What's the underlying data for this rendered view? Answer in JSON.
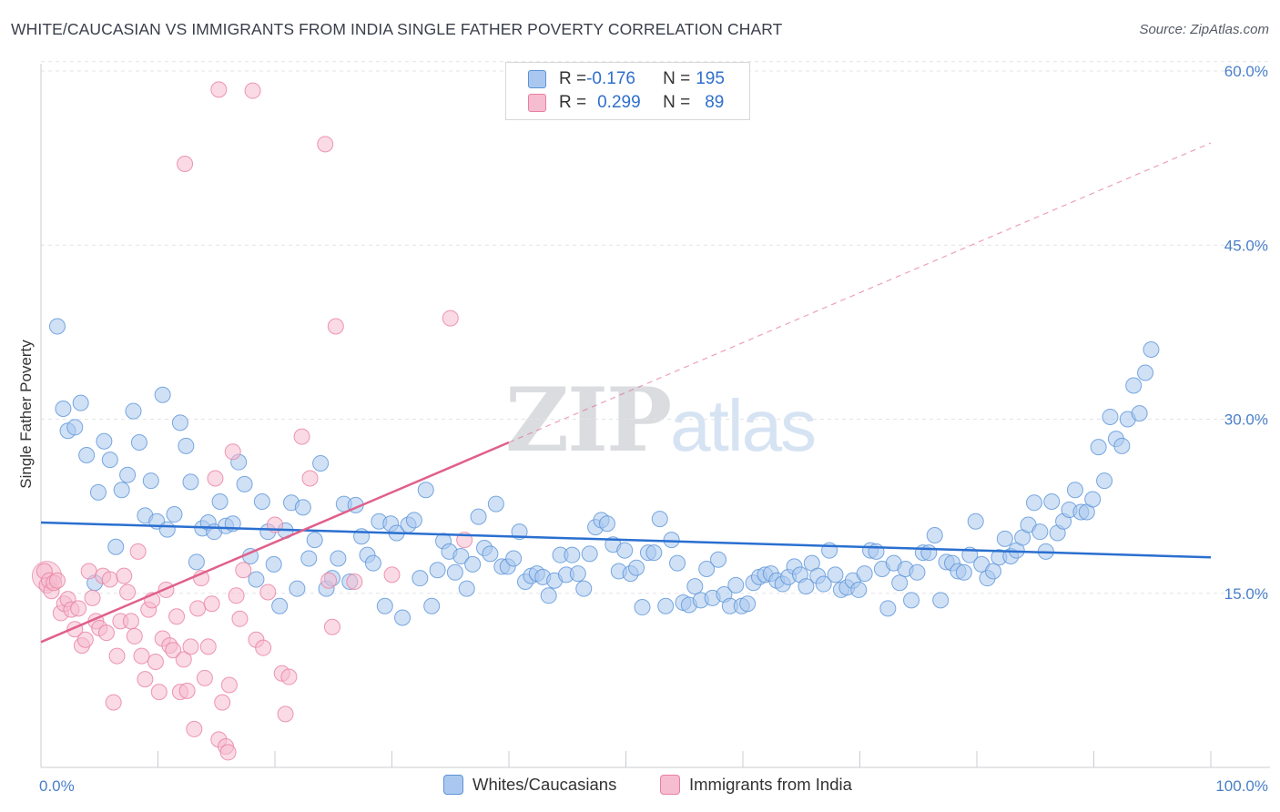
{
  "title": "WHITE/CAUCASIAN VS IMMIGRANTS FROM INDIA SINGLE FATHER POVERTY CORRELATION CHART",
  "source": "Source: ZipAtlas.com",
  "watermark": {
    "zip": "ZIP",
    "atlas": "atlas"
  },
  "legend": {
    "rows": [
      {
        "r_label": "R = ",
        "r_value": "-0.176",
        "n_label": "N = ",
        "n_value": "195",
        "color": "#aac8ef"
      },
      {
        "r_label": "R = ",
        "r_value": "0.299",
        "n_label": "N = ",
        "n_value": "89",
        "color": "#f6bcd0"
      }
    ]
  },
  "bottom_legend": [
    {
      "label": "Whites/Caucasians",
      "color": "#aac8ef"
    },
    {
      "label": "Immigrants from India",
      "color": "#f6bcd0"
    }
  ],
  "chart_data": {
    "type": "scatter",
    "title": "WHITE/CAUCASIAN VS IMMIGRANTS FROM INDIA SINGLE FATHER POVERTY CORRELATION CHART",
    "xlabel": "",
    "ylabel": "Single Father Poverty",
    "xlim": [
      0,
      100
    ],
    "ylim": [
      0,
      60
    ],
    "x_tick_labels": [
      "0.0%",
      "100.0%"
    ],
    "y_ticks": [
      15,
      30,
      45,
      60
    ],
    "y_tick_labels": [
      "15.0%",
      "30.0%",
      "45.0%",
      "60.0%"
    ],
    "grid": true,
    "colors": {
      "blue_fill": "#aac8ef",
      "blue_stroke": "#5b93d8",
      "blue_line": "#2a6fd0",
      "pink_fill": "#f6bcd0",
      "pink_stroke": "#e8809f",
      "pink_line": "#e0608a"
    },
    "series": [
      {
        "name": "Whites/Caucasians",
        "R": -0.176,
        "N": 195,
        "trend": {
          "x": [
            0,
            100
          ],
          "y": [
            21.1,
            18.1
          ]
        },
        "points": [
          [
            1.4,
            38.0
          ],
          [
            1.9,
            30.9
          ],
          [
            2.3,
            29.0
          ],
          [
            2.9,
            29.3
          ],
          [
            3.4,
            31.4
          ],
          [
            3.9,
            26.9
          ],
          [
            4.6,
            15.9
          ],
          [
            4.9,
            23.7
          ],
          [
            5.4,
            28.1
          ],
          [
            5.9,
            26.5
          ],
          [
            6.4,
            19.0
          ],
          [
            6.9,
            23.9
          ],
          [
            7.4,
            25.2
          ],
          [
            7.9,
            30.7
          ],
          [
            8.4,
            28.0
          ],
          [
            8.9,
            21.7
          ],
          [
            9.4,
            24.7
          ],
          [
            9.9,
            21.2
          ],
          [
            10.4,
            32.1
          ],
          [
            10.8,
            20.5
          ],
          [
            11.4,
            21.8
          ],
          [
            11.9,
            29.7
          ],
          [
            12.4,
            27.7
          ],
          [
            12.8,
            24.6
          ],
          [
            13.3,
            17.7
          ],
          [
            13.8,
            20.6
          ],
          [
            14.3,
            21.1
          ],
          [
            14.8,
            20.3
          ],
          [
            15.3,
            22.9
          ],
          [
            15.8,
            20.8
          ],
          [
            16.4,
            21.0
          ],
          [
            16.9,
            26.3
          ],
          [
            17.4,
            24.4
          ],
          [
            17.9,
            18.2
          ],
          [
            18.4,
            16.2
          ],
          [
            18.9,
            22.9
          ],
          [
            19.4,
            20.3
          ],
          [
            19.9,
            17.5
          ],
          [
            20.4,
            13.9
          ],
          [
            20.9,
            20.4
          ],
          [
            21.4,
            22.8
          ],
          [
            21.9,
            15.4
          ],
          [
            22.4,
            22.4
          ],
          [
            22.9,
            18.0
          ],
          [
            23.4,
            19.6
          ],
          [
            23.9,
            26.2
          ],
          [
            24.4,
            15.4
          ],
          [
            24.9,
            16.3
          ],
          [
            25.4,
            18.0
          ],
          [
            25.9,
            22.7
          ],
          [
            26.4,
            16.0
          ],
          [
            26.9,
            22.6
          ],
          [
            27.4,
            19.9
          ],
          [
            27.9,
            18.3
          ],
          [
            28.4,
            17.6
          ],
          [
            28.9,
            21.2
          ],
          [
            29.4,
            13.9
          ],
          [
            29.9,
            21.0
          ],
          [
            30.4,
            20.2
          ],
          [
            30.9,
            12.9
          ],
          [
            31.4,
            20.9
          ],
          [
            31.9,
            21.3
          ],
          [
            32.4,
            16.3
          ],
          [
            32.9,
            23.9
          ],
          [
            33.4,
            13.9
          ],
          [
            33.9,
            17.0
          ],
          [
            34.4,
            19.5
          ],
          [
            34.9,
            18.6
          ],
          [
            35.4,
            16.8
          ],
          [
            35.9,
            18.2
          ],
          [
            36.4,
            15.4
          ],
          [
            36.9,
            17.5
          ],
          [
            37.4,
            21.6
          ],
          [
            37.9,
            18.9
          ],
          [
            38.4,
            18.4
          ],
          [
            38.9,
            22.7
          ],
          [
            39.4,
            17.3
          ],
          [
            39.9,
            17.3
          ],
          [
            40.4,
            18.0
          ],
          [
            40.9,
            20.3
          ],
          [
            41.4,
            16.0
          ],
          [
            41.9,
            16.5
          ],
          [
            42.4,
            16.7
          ],
          [
            42.9,
            16.4
          ],
          [
            43.4,
            14.8
          ],
          [
            43.9,
            16.1
          ],
          [
            44.4,
            18.3
          ],
          [
            44.9,
            16.6
          ],
          [
            45.4,
            18.3
          ],
          [
            45.9,
            16.7
          ],
          [
            46.4,
            15.4
          ],
          [
            46.9,
            18.4
          ],
          [
            47.4,
            20.7
          ],
          [
            47.9,
            21.3
          ],
          [
            48.4,
            21.0
          ],
          [
            48.9,
            19.2
          ],
          [
            49.4,
            16.9
          ],
          [
            49.9,
            18.7
          ],
          [
            50.4,
            16.7
          ],
          [
            50.9,
            17.2
          ],
          [
            51.4,
            13.8
          ],
          [
            51.9,
            18.5
          ],
          [
            52.4,
            18.5
          ],
          [
            52.9,
            21.4
          ],
          [
            53.4,
            13.9
          ],
          [
            53.9,
            19.6
          ],
          [
            54.4,
            17.6
          ],
          [
            54.9,
            14.2
          ],
          [
            55.4,
            14.0
          ],
          [
            55.9,
            15.6
          ],
          [
            56.4,
            14.4
          ],
          [
            56.9,
            17.1
          ],
          [
            57.4,
            14.6
          ],
          [
            57.9,
            17.9
          ],
          [
            58.4,
            14.9
          ],
          [
            58.9,
            13.9
          ],
          [
            59.4,
            15.7
          ],
          [
            59.9,
            13.9
          ],
          [
            60.4,
            14.1
          ],
          [
            60.9,
            15.9
          ],
          [
            61.4,
            16.4
          ],
          [
            61.9,
            16.6
          ],
          [
            62.4,
            16.7
          ],
          [
            62.9,
            16.1
          ],
          [
            63.4,
            15.8
          ],
          [
            63.9,
            16.4
          ],
          [
            64.4,
            17.3
          ],
          [
            64.9,
            16.6
          ],
          [
            65.4,
            15.6
          ],
          [
            65.9,
            17.6
          ],
          [
            66.4,
            16.5
          ],
          [
            66.9,
            15.8
          ],
          [
            67.4,
            18.7
          ],
          [
            67.9,
            16.6
          ],
          [
            68.4,
            15.3
          ],
          [
            68.9,
            15.5
          ],
          [
            69.4,
            16.1
          ],
          [
            69.9,
            15.3
          ],
          [
            70.4,
            16.7
          ],
          [
            70.9,
            18.7
          ],
          [
            71.4,
            18.6
          ],
          [
            71.9,
            17.1
          ],
          [
            72.4,
            13.7
          ],
          [
            72.9,
            17.6
          ],
          [
            73.4,
            15.9
          ],
          [
            73.9,
            17.1
          ],
          [
            74.4,
            14.4
          ],
          [
            74.9,
            16.8
          ],
          [
            75.4,
            18.5
          ],
          [
            75.9,
            18.5
          ],
          [
            76.4,
            20.0
          ],
          [
            76.9,
            14.4
          ],
          [
            77.4,
            17.7
          ],
          [
            77.9,
            17.6
          ],
          [
            78.4,
            16.9
          ],
          [
            78.9,
            16.8
          ],
          [
            79.4,
            18.3
          ],
          [
            79.9,
            21.2
          ],
          [
            80.4,
            17.5
          ],
          [
            80.9,
            16.3
          ],
          [
            81.4,
            16.9
          ],
          [
            81.9,
            18.1
          ],
          [
            82.4,
            19.7
          ],
          [
            82.9,
            18.2
          ],
          [
            83.4,
            18.7
          ],
          [
            83.9,
            19.8
          ],
          [
            84.4,
            20.9
          ],
          [
            84.9,
            22.8
          ],
          [
            85.4,
            20.3
          ],
          [
            85.9,
            18.6
          ],
          [
            86.4,
            22.9
          ],
          [
            86.9,
            20.2
          ],
          [
            87.4,
            21.2
          ],
          [
            87.9,
            22.2
          ],
          [
            88.4,
            23.9
          ],
          [
            88.9,
            22.0
          ],
          [
            89.4,
            22.0
          ],
          [
            89.9,
            23.1
          ],
          [
            90.4,
            27.6
          ],
          [
            90.9,
            24.7
          ],
          [
            91.4,
            30.2
          ],
          [
            91.9,
            28.3
          ],
          [
            92.4,
            27.7
          ],
          [
            92.9,
            30.0
          ],
          [
            93.4,
            32.9
          ],
          [
            93.9,
            30.5
          ],
          [
            94.4,
            34.0
          ],
          [
            94.9,
            36.0
          ]
        ]
      },
      {
        "name": "Immigrants from India",
        "R": 0.299,
        "N": 89,
        "trend": {
          "x": [
            0,
            40
          ],
          "y": [
            10.8,
            28.0
          ]
        },
        "trend_dashed": {
          "x": [
            40,
            100
          ],
          "y": [
            28.0,
            53.8
          ]
        },
        "points": [
          [
            0.3,
            16.9
          ],
          [
            0.5,
            15.7
          ],
          [
            0.7,
            16.1
          ],
          [
            0.9,
            15.2
          ],
          [
            1.1,
            15.9
          ],
          [
            1.4,
            16.1
          ],
          [
            1.7,
            13.3
          ],
          [
            2.0,
            14.1
          ],
          [
            2.3,
            14.5
          ],
          [
            2.6,
            13.6
          ],
          [
            2.9,
            11.9
          ],
          [
            3.2,
            13.7
          ],
          [
            3.5,
            10.5
          ],
          [
            3.8,
            11.0
          ],
          [
            4.1,
            16.9
          ],
          [
            4.4,
            14.6
          ],
          [
            4.7,
            12.6
          ],
          [
            5.0,
            12.0
          ],
          [
            5.3,
            16.5
          ],
          [
            5.6,
            11.6
          ],
          [
            5.9,
            16.2
          ],
          [
            6.2,
            5.6
          ],
          [
            6.5,
            9.6
          ],
          [
            6.8,
            12.6
          ],
          [
            7.1,
            16.5
          ],
          [
            7.4,
            15.1
          ],
          [
            7.7,
            12.6
          ],
          [
            8.0,
            11.3
          ],
          [
            8.3,
            18.6
          ],
          [
            8.6,
            9.6
          ],
          [
            8.9,
            7.6
          ],
          [
            9.2,
            13.6
          ],
          [
            9.5,
            14.4
          ],
          [
            9.8,
            9.1
          ],
          [
            10.1,
            6.5
          ],
          [
            10.4,
            11.1
          ],
          [
            10.7,
            15.3
          ],
          [
            11.0,
            10.5
          ],
          [
            11.3,
            10.1
          ],
          [
            11.6,
            13.0
          ],
          [
            11.9,
            6.5
          ],
          [
            12.2,
            9.3
          ],
          [
            12.5,
            6.6
          ],
          [
            12.8,
            10.4
          ],
          [
            13.1,
            3.3
          ],
          [
            13.4,
            13.7
          ],
          [
            13.7,
            16.3
          ],
          [
            14.0,
            7.7
          ],
          [
            14.3,
            10.4
          ],
          [
            14.6,
            14.1
          ],
          [
            14.9,
            24.9
          ],
          [
            15.2,
            2.4
          ],
          [
            15.5,
            5.6
          ],
          [
            15.8,
            1.8
          ],
          [
            16.1,
            7.1
          ],
          [
            16.4,
            27.2
          ],
          [
            16.7,
            14.8
          ],
          [
            17.0,
            12.8
          ],
          [
            17.3,
            17.0
          ],
          [
            12.3,
            52.0
          ],
          [
            15.2,
            58.4
          ],
          [
            18.1,
            58.3
          ],
          [
            16.0,
            1.3
          ],
          [
            18.4,
            11.0
          ],
          [
            19.0,
            10.3
          ],
          [
            19.4,
            15.1
          ],
          [
            22.3,
            28.5
          ],
          [
            20.0,
            20.9
          ],
          [
            20.6,
            8.1
          ],
          [
            20.9,
            4.6
          ],
          [
            21.2,
            7.8
          ],
          [
            23.0,
            24.9
          ],
          [
            24.3,
            53.7
          ],
          [
            24.6,
            16.1
          ],
          [
            24.9,
            12.1
          ],
          [
            25.2,
            38.0
          ],
          [
            26.8,
            16.0
          ],
          [
            30.0,
            16.6
          ],
          [
            35.0,
            38.7
          ],
          [
            36.2,
            19.6
          ]
        ]
      }
    ]
  }
}
